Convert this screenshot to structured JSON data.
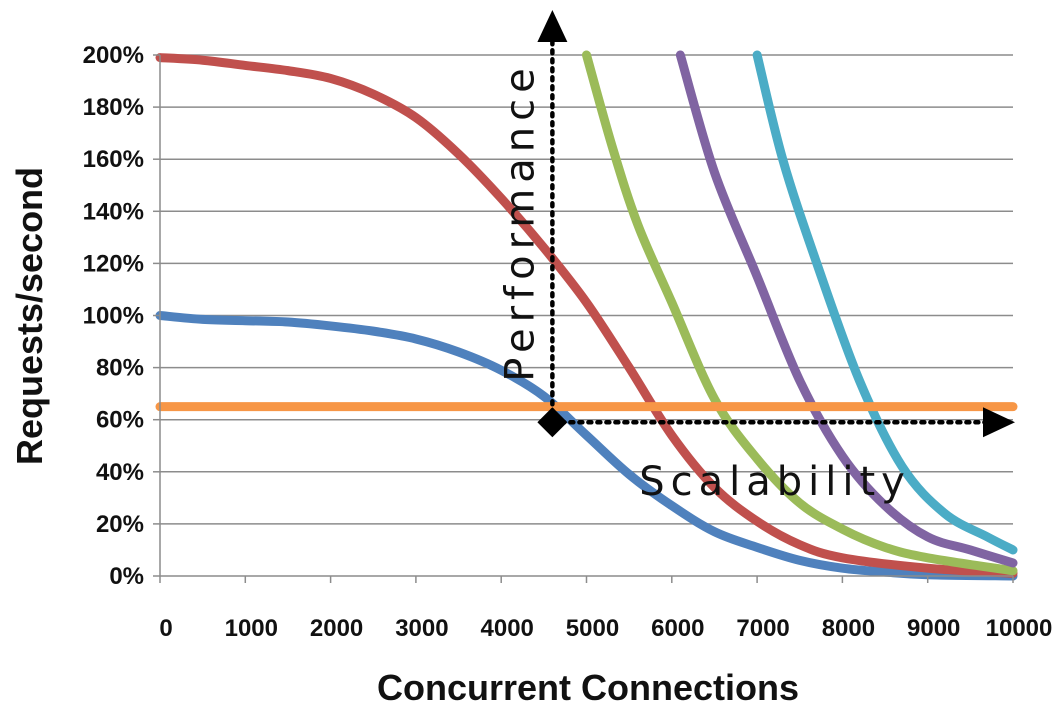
{
  "chart_data": {
    "type": "line",
    "xlabel": "Concurrent Connections",
    "ylabel": "Requests/second",
    "xlim": [
      0,
      10000
    ],
    "ylim": [
      0,
      200
    ],
    "x_ticks": [
      "0",
      "1000",
      "2000",
      "3000",
      "4000",
      "5000",
      "6000",
      "7000",
      "8000",
      "9000",
      "10000"
    ],
    "y_ticks": [
      "0%",
      "20%",
      "40%",
      "60%",
      "80%",
      "100%",
      "120%",
      "140%",
      "160%",
      "180%",
      "200%"
    ],
    "grid": true,
    "series": [
      {
        "color": "#4f81bd",
        "points": [
          [
            0,
            100
          ],
          [
            500,
            98.5
          ],
          [
            1000,
            98
          ],
          [
            1500,
            97.5
          ],
          [
            2000,
            96
          ],
          [
            2500,
            94
          ],
          [
            3000,
            91
          ],
          [
            3500,
            86
          ],
          [
            4000,
            79
          ],
          [
            4500,
            69
          ],
          [
            5000,
            54
          ],
          [
            5500,
            39
          ],
          [
            6000,
            27
          ],
          [
            6500,
            17
          ],
          [
            7000,
            11
          ],
          [
            7500,
            6
          ],
          [
            8000,
            3
          ],
          [
            8500,
            1.5
          ],
          [
            9000,
            0.5
          ],
          [
            10000,
            0
          ]
        ]
      },
      {
        "color": "#c0504d",
        "points": [
          [
            0,
            199
          ],
          [
            500,
            198
          ],
          [
            1000,
            196
          ],
          [
            1500,
            194
          ],
          [
            2000,
            191
          ],
          [
            2500,
            185
          ],
          [
            3000,
            176
          ],
          [
            3500,
            162
          ],
          [
            4000,
            145
          ],
          [
            4500,
            126
          ],
          [
            5000,
            105
          ],
          [
            5500,
            80
          ],
          [
            6000,
            54
          ],
          [
            6500,
            34
          ],
          [
            7000,
            21
          ],
          [
            7500,
            12
          ],
          [
            8000,
            7
          ],
          [
            9000,
            3
          ],
          [
            10000,
            1
          ]
        ]
      },
      {
        "color": "#9bbb59",
        "points": [
          [
            5000,
            200
          ],
          [
            5300,
            165
          ],
          [
            5600,
            135
          ],
          [
            6000,
            105
          ],
          [
            6500,
            68
          ],
          [
            7000,
            45
          ],
          [
            7500,
            28
          ],
          [
            8000,
            18
          ],
          [
            8500,
            11
          ],
          [
            9000,
            7
          ],
          [
            10000,
            2
          ]
        ]
      },
      {
        "color": "#8064a2",
        "points": [
          [
            6100,
            200
          ],
          [
            6500,
            155
          ],
          [
            7000,
            115
          ],
          [
            7500,
            75
          ],
          [
            8000,
            46
          ],
          [
            8500,
            27
          ],
          [
            9000,
            15
          ],
          [
            9500,
            10
          ],
          [
            10000,
            5
          ]
        ]
      },
      {
        "color": "#4bacc6",
        "points": [
          [
            7000,
            200
          ],
          [
            7300,
            160
          ],
          [
            7700,
            120
          ],
          [
            8200,
            75
          ],
          [
            8700,
            42
          ],
          [
            9200,
            24
          ],
          [
            9700,
            15
          ],
          [
            10000,
            10
          ]
        ]
      },
      {
        "color": "#f79646",
        "points": [
          [
            0,
            65
          ],
          [
            10000,
            65
          ]
        ]
      }
    ],
    "annotations": {
      "performance": "Performance",
      "scalability": "Scalability",
      "origin_point": [
        4600,
        59
      ]
    }
  }
}
